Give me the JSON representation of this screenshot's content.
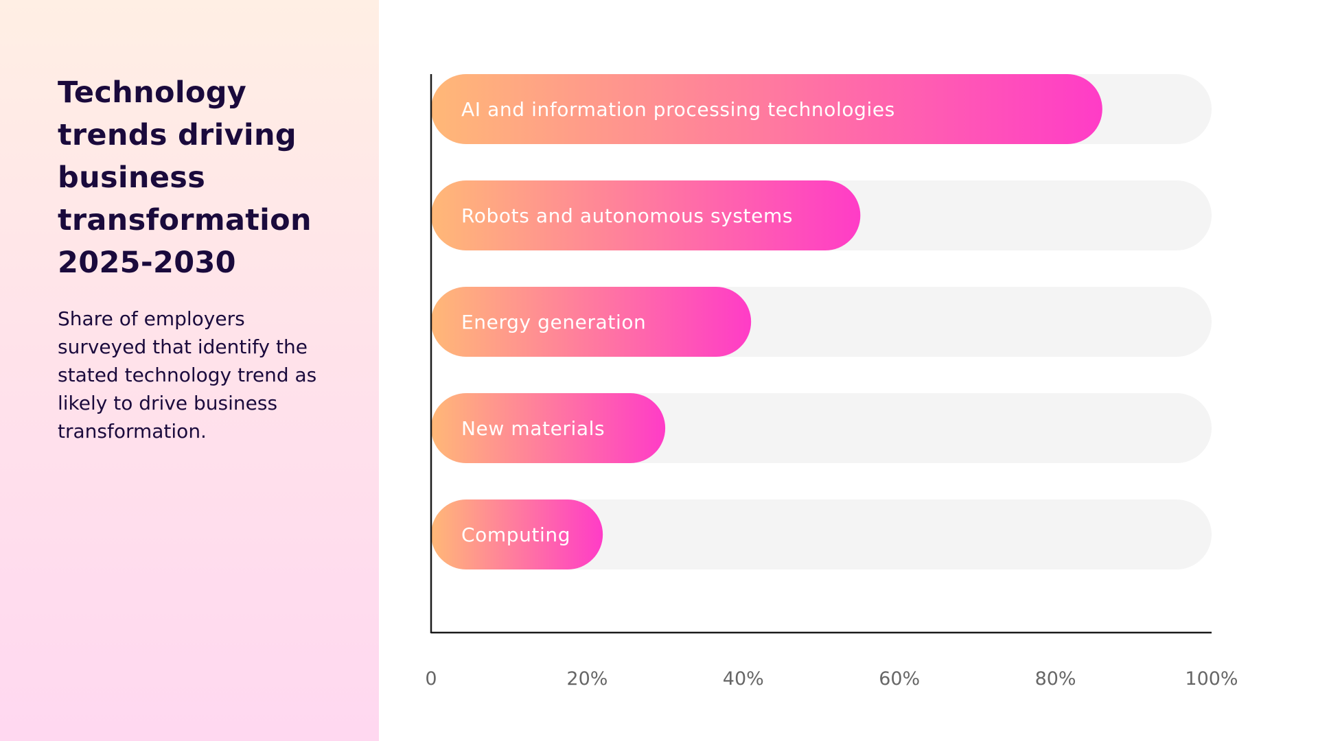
{
  "sidebar": {
    "title": "Technology trends driving business transformation 2025-2030",
    "subtitle": "Share of employers surveyed that identify the stated technology trend as likely to drive business transformation."
  },
  "colors": {
    "bar_start": "#ffb877",
    "bar_end": "#ff3cc7",
    "track": "#f4f4f4",
    "axis": "#1a1a1a",
    "title": "#1a0a3c"
  },
  "chart_data": {
    "type": "bar",
    "orientation": "horizontal",
    "categories": [
      "AI and information processing technologies",
      "Robots and autonomous systems",
      "Energy generation",
      "New materials",
      "Computing"
    ],
    "values": [
      86,
      55,
      41,
      30,
      22
    ],
    "xlim": [
      0,
      100
    ],
    "x_ticks": [
      "0",
      "20%",
      "40%",
      "60%",
      "80%",
      "100%"
    ],
    "grid": false,
    "legend": false
  }
}
